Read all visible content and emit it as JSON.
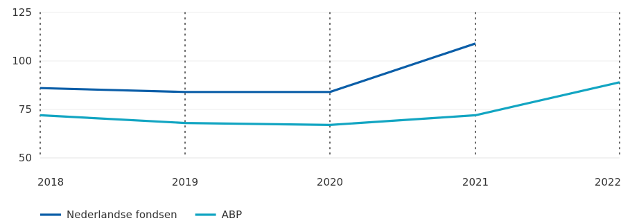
{
  "chart_data": {
    "type": "line",
    "categories": [
      "2018",
      "2019",
      "2020",
      "2021",
      "2022"
    ],
    "series": [
      {
        "name": "Nederlandse fondsen",
        "color": "#0b5ea8",
        "values": [
          86,
          84,
          84,
          109,
          null
        ]
      },
      {
        "name": "ABP",
        "color": "#12a5c2",
        "values": [
          72,
          68,
          67,
          72,
          89
        ]
      }
    ],
    "y_ticks": [
      50,
      75,
      100,
      125
    ],
    "ylim": [
      50,
      125
    ],
    "title": "",
    "xlabel": "",
    "ylabel": "",
    "grid": "vertical-dotted",
    "legend_position": "bottom-left"
  }
}
